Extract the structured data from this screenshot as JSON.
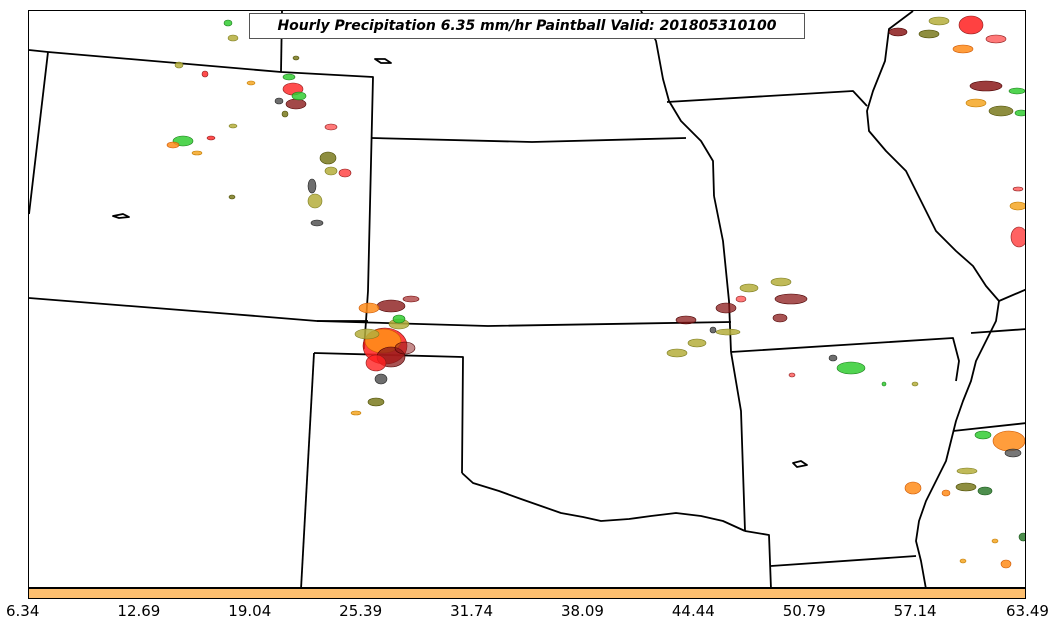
{
  "title": "Hourly Precipitation 6.35 mm/hr Paintball Valid: 201805310100",
  "colorbar": {
    "color": "#fdbf6f",
    "ticks": [
      "6.34",
      "12.69",
      "19.04",
      "25.39",
      "31.74",
      "38.09",
      "44.44",
      "50.79",
      "57.14",
      "63.49"
    ]
  },
  "paintball_colors": {
    "red": "#ff2020",
    "green": "#33cc33",
    "orange": "#ff8c1a",
    "light_orange": "#f5a623",
    "olive": "#b5ae3c",
    "dark_olive": "#7a7a1e",
    "maroon": "#8b1a1a",
    "dark_red": "#a52a2a",
    "gray": "#555555"
  },
  "map": {
    "border_color": "#000000",
    "background": "#ffffff"
  }
}
